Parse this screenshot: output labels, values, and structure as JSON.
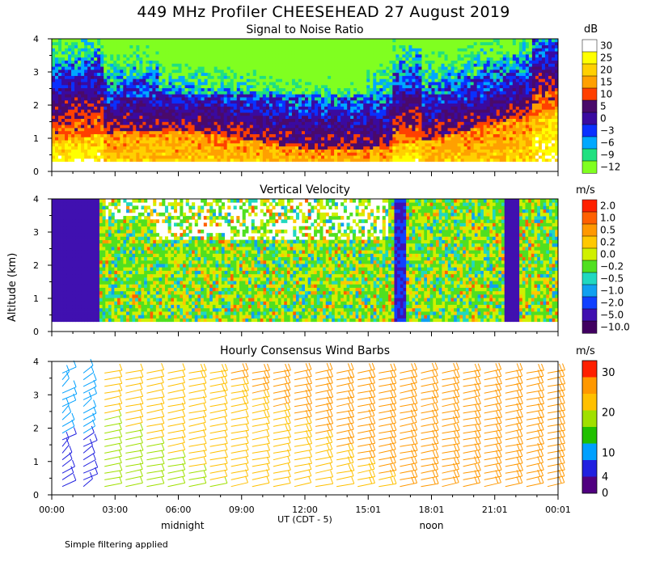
{
  "title": "449 MHz Profiler CHEESEHEAD 27 August 2019",
  "ylabel": "Altitude (km)",
  "xaxis": {
    "label": "UT  (CDT - 5)",
    "ticks": [
      "00:00",
      "03:00",
      "06:00",
      "09:00",
      "12:00",
      "15:01",
      "18:01",
      "21:01",
      "00:01"
    ],
    "tick_hours": [
      0,
      3,
      6,
      9,
      12,
      15,
      18,
      21,
      24
    ],
    "local_labels": [
      {
        "text": "midnight",
        "hour": 6.2
      },
      {
        "text": "noon",
        "hour": 18.0
      }
    ]
  },
  "footer_note": "Simple filtering applied",
  "chart_data": [
    {
      "type": "heatmap",
      "title": "Signal to Noise Ratio",
      "unit": "dB",
      "ylim": [
        0,
        4
      ],
      "yticks": [
        0,
        1,
        2,
        3,
        4
      ],
      "xlim_hours": [
        0,
        24
      ],
      "data_altitude_range_km": [
        0.3,
        4.0
      ],
      "colorbar": {
        "labels": [
          "30",
          "25",
          "20",
          "15",
          "10",
          "5",
          "0",
          "−3",
          "−6",
          "−9",
          "−12"
        ],
        "colors": [
          "#ffffff",
          "#ffff00",
          "#ffd000",
          "#ffa000",
          "#ff4000",
          "#4a0a6a",
          "#3a0aa0",
          "#0a30ff",
          "#00a8ff",
          "#20e080",
          "#80ff20"
        ]
      }
    },
    {
      "type": "heatmap",
      "title": "Vertical Velocity",
      "unit": "m/s",
      "ylim": [
        0,
        4
      ],
      "yticks": [
        0,
        1,
        2,
        3,
        4
      ],
      "xlim_hours": [
        0,
        24
      ],
      "data_altitude_range_km": [
        0.3,
        4.0
      ],
      "colorbar": {
        "labels": [
          "2.0",
          "1.0",
          "0.5",
          "0.2",
          "0.0",
          "−0.2",
          "−0.5",
          "−1.0",
          "−2.0",
          "−5.0",
          "−10.0"
        ],
        "colors": [
          "#ff2000",
          "#ff6000",
          "#ff9800",
          "#ffc800",
          "#d0f000",
          "#50e020",
          "#20d8c0",
          "#10a0f0",
          "#1040ff",
          "#4010b0",
          "#400060"
        ]
      }
    },
    {
      "type": "scatter",
      "title": "Hourly Consensus Wind Barbs",
      "unit": "m/s",
      "ylim": [
        0,
        4
      ],
      "yticks": [
        0,
        1,
        2,
        3,
        4
      ],
      "xlim_hours": [
        0,
        24
      ],
      "colorbar": {
        "labels": [
          "30",
          "20",
          "10",
          "4",
          "0"
        ],
        "colors": [
          "#ff2000",
          "#ff9800",
          "#ffc000",
          "#a0e000",
          "#20c000",
          "#00a0ff",
          "#2020e0",
          "#500080"
        ],
        "stops": [
          30,
          20,
          10,
          4,
          0
        ]
      }
    }
  ]
}
